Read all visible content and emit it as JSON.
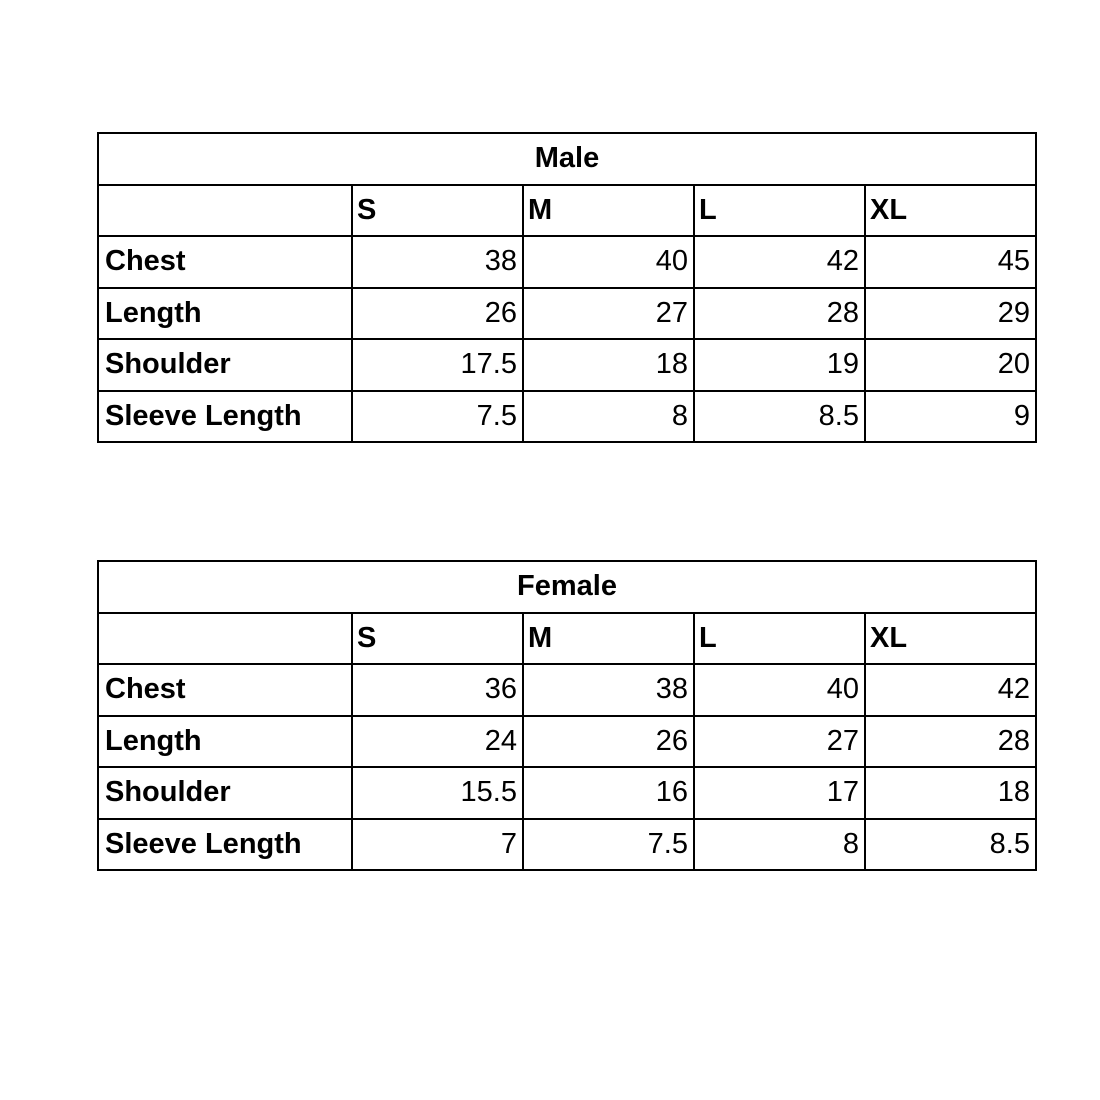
{
  "tables": [
    {
      "title": "Male",
      "sizes": [
        "S",
        "M",
        "L",
        "XL"
      ],
      "rows": [
        {
          "label": "Chest",
          "values": [
            "38",
            "40",
            "42",
            "45"
          ]
        },
        {
          "label": "Length",
          "values": [
            "26",
            "27",
            "28",
            "29"
          ]
        },
        {
          "label": "Shoulder",
          "values": [
            "17.5",
            "18",
            "19",
            "20"
          ]
        },
        {
          "label": "Sleeve Length",
          "values": [
            "7.5",
            "8",
            "8.5",
            "9"
          ]
        }
      ]
    },
    {
      "title": "Female",
      "sizes": [
        "S",
        "M",
        "L",
        "XL"
      ],
      "rows": [
        {
          "label": "Chest",
          "values": [
            "36",
            "38",
            "40",
            "42"
          ]
        },
        {
          "label": "Length",
          "values": [
            "24",
            "26",
            "27",
            "28"
          ]
        },
        {
          "label": "Shoulder",
          "values": [
            "15.5",
            "16",
            "17",
            "18"
          ]
        },
        {
          "label": "Sleeve Length",
          "values": [
            "7",
            "7.5",
            "8",
            "8.5"
          ]
        }
      ]
    }
  ]
}
